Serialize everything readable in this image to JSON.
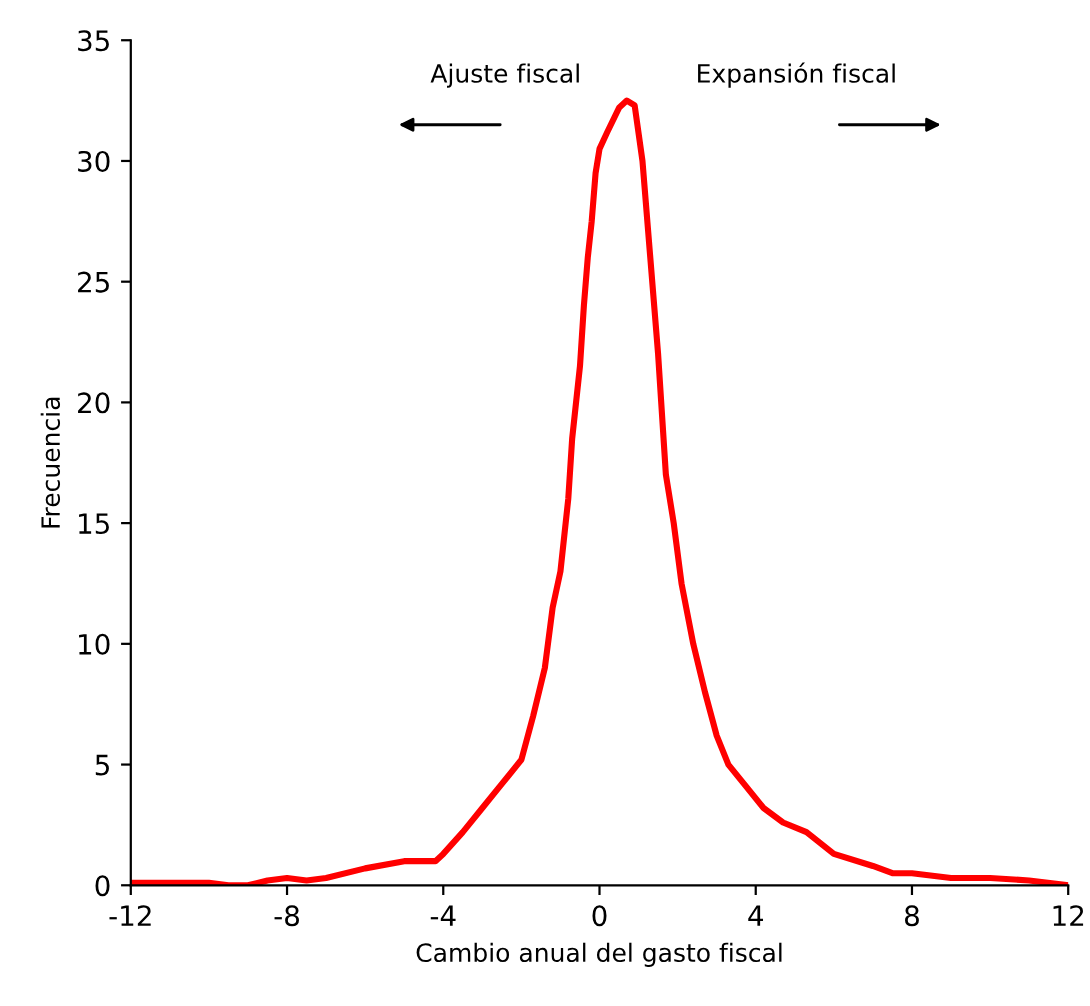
{
  "chart_data": {
    "type": "line",
    "xlabel": "Cambio anual del gasto fiscal",
    "ylabel": "Frecuencia",
    "annotations": [
      "Ajuste fiscal",
      "Expansión fiscal"
    ],
    "series": [
      {
        "color": "#ff0000",
        "x": [
          -12,
          -10,
          -9.5,
          -9,
          -8.5,
          -8,
          -7.5,
          -7,
          -6,
          -5,
          -4.2,
          -4,
          -3.5,
          -3,
          -2.5,
          -2,
          -1.7,
          -1.4,
          -1.2,
          -1,
          -0.8,
          -0.7,
          -0.5,
          -0.4,
          -0.3,
          -0.2,
          -0.1,
          0,
          0.2,
          0.5,
          0.7,
          0.9,
          1.1,
          1.3,
          1.5,
          1.7,
          1.9,
          2.1,
          2.4,
          2.7,
          3,
          3.3,
          3.7,
          4.2,
          4.7,
          5.3,
          6,
          7,
          7.5,
          8,
          9,
          10,
          11,
          12
        ],
        "values": [
          0.1,
          0.1,
          0,
          0,
          0.2,
          0.3,
          0.2,
          0.3,
          0.7,
          1.0,
          1.0,
          1.3,
          2.2,
          3.2,
          4.2,
          5.2,
          7,
          9,
          11.5,
          13,
          16,
          18.5,
          21.5,
          24,
          26,
          27.5,
          29.5,
          30.5,
          31.2,
          32.2,
          32.5,
          32.3,
          30,
          26,
          22,
          17,
          15,
          12.5,
          10,
          8,
          6.2,
          5,
          4.2,
          3.2,
          2.6,
          2.2,
          1.3,
          0.8,
          0.5,
          0.5,
          0.3,
          0.3,
          0.2,
          0
        ]
      }
    ],
    "xlim": [
      -12,
      12
    ],
    "xticks": [
      -12,
      -8,
      -4,
      0,
      4,
      8,
      12
    ],
    "ylim": [
      0,
      35
    ],
    "yticks": [
      0,
      5,
      10,
      15,
      20,
      25,
      30,
      35
    ],
    "grid": false,
    "legend": false,
    "marker": "none",
    "line_style": "solid"
  }
}
